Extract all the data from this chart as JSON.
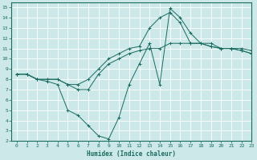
{
  "xlabel": "Humidex (Indice chaleur)",
  "ylabel": "",
  "xlim": [
    -0.5,
    23
  ],
  "ylim": [
    2,
    15.5
  ],
  "xticks": [
    0,
    1,
    2,
    3,
    4,
    5,
    6,
    7,
    8,
    9,
    10,
    11,
    12,
    13,
    14,
    15,
    16,
    17,
    18,
    19,
    20,
    21,
    22,
    23
  ],
  "yticks": [
    2,
    3,
    4,
    5,
    6,
    7,
    8,
    9,
    10,
    11,
    12,
    13,
    14,
    15
  ],
  "bg_color": "#cce8e8",
  "line_color": "#1a6b60",
  "line1_x": [
    0,
    1,
    2,
    3,
    4,
    5,
    6,
    7,
    8,
    9,
    10,
    11,
    12,
    13,
    14,
    15,
    16,
    17,
    18,
    19,
    20,
    21,
    22,
    23
  ],
  "line1_y": [
    8.5,
    8.5,
    8.0,
    7.8,
    7.5,
    5.0,
    4.5,
    3.5,
    2.5,
    2.2,
    4.3,
    7.5,
    9.5,
    11.5,
    7.5,
    14.9,
    14.0,
    12.5,
    11.5,
    11.5,
    11.0,
    11.0,
    11.0,
    10.8
  ],
  "line2_x": [
    0,
    1,
    2,
    3,
    4,
    5,
    6,
    7,
    8,
    9,
    10,
    11,
    12,
    13,
    14,
    15,
    16,
    17,
    18,
    19,
    20,
    21,
    22,
    23
  ],
  "line2_y": [
    8.5,
    8.5,
    8.0,
    8.0,
    8.0,
    7.5,
    7.0,
    7.0,
    8.5,
    9.5,
    10.0,
    10.5,
    10.8,
    11.0,
    11.0,
    11.5,
    11.5,
    11.5,
    11.5,
    11.2,
    11.0,
    11.0,
    10.8,
    10.5
  ],
  "line3_x": [
    0,
    1,
    2,
    3,
    4,
    5,
    6,
    7,
    8,
    9,
    10,
    11,
    12,
    13,
    14,
    15,
    16,
    17,
    18,
    19,
    20,
    21,
    22,
    23
  ],
  "line3_y": [
    8.5,
    8.5,
    8.0,
    8.0,
    8.0,
    7.5,
    7.5,
    8.0,
    9.0,
    10.0,
    10.5,
    11.0,
    11.2,
    13.0,
    14.0,
    14.5,
    13.5,
    11.5,
    11.5,
    11.2,
    11.0,
    11.0,
    10.8,
    10.5
  ]
}
